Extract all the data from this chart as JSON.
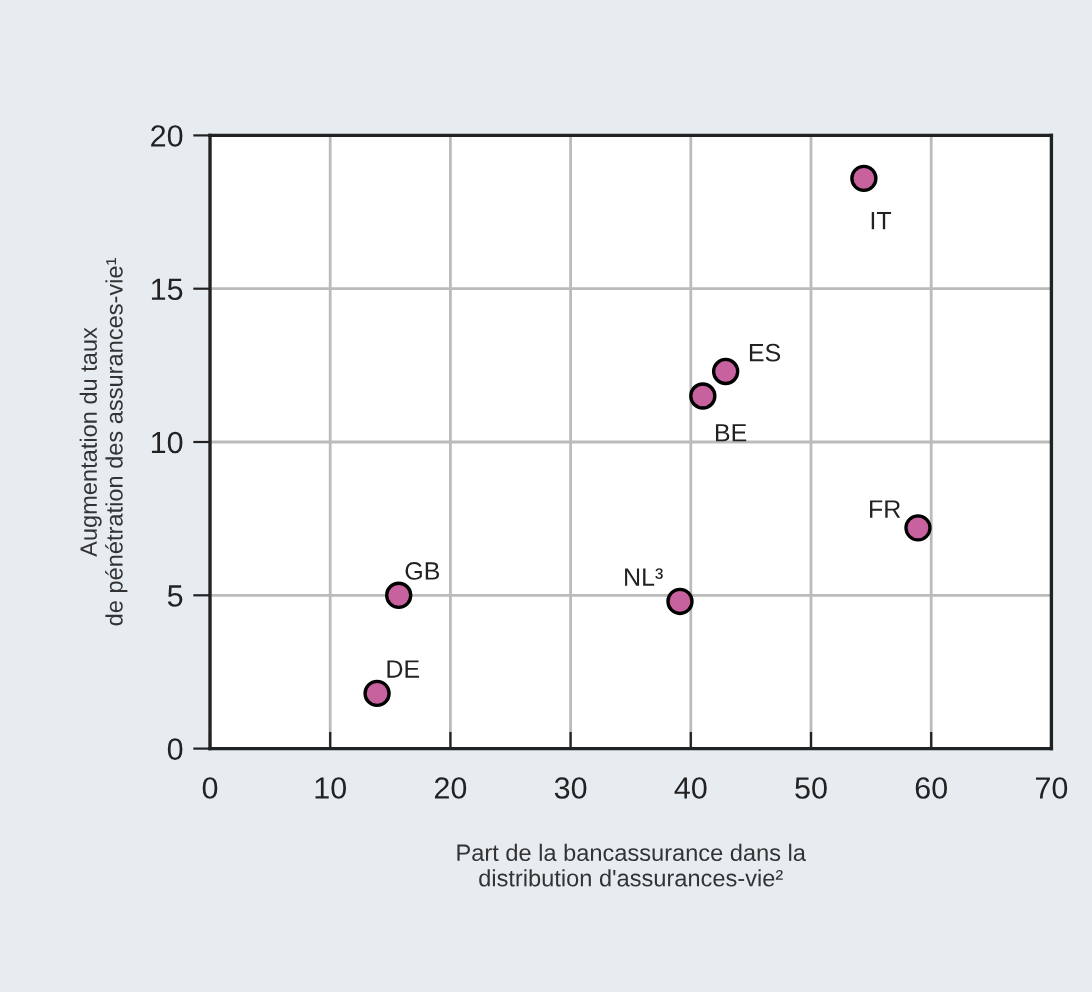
{
  "chart_data": {
    "type": "scatter",
    "xlabel": "Part de la bancassurance dans la\ndistribution d'assurances-vie²",
    "ylabel": "Augmentation du taux\nde pénétration des assurances-vie¹",
    "x": [
      13.9,
      15.7,
      39.1,
      41.0,
      42.9,
      54.4,
      58.9
    ],
    "values": [
      1.8,
      5.0,
      4.8,
      11.5,
      12.3,
      18.6,
      7.2
    ],
    "color": "#c8629e",
    "marker": "circle",
    "grid": true,
    "xlim": [
      0,
      70
    ],
    "xticks": [
      0,
      10,
      20,
      30,
      40,
      50,
      60,
      70
    ],
    "ylim": [
      0,
      20
    ],
    "yticks": [
      0,
      5,
      10,
      15,
      20
    ],
    "annotations": [
      {
        "text": "DE",
        "x": 13.9,
        "y": 1.8
      },
      {
        "text": "GB",
        "x": 15.7,
        "y": 5.0
      },
      {
        "text": "NL³",
        "x": 39.1,
        "y": 4.8
      },
      {
        "text": "BE",
        "x": 41.0,
        "y": 11.5
      },
      {
        "text": "ES",
        "x": 42.9,
        "y": 12.3
      },
      {
        "text": "IT",
        "x": 54.4,
        "y": 18.6
      },
      {
        "text": "FR",
        "x": 58.9,
        "y": 7.2
      }
    ]
  }
}
